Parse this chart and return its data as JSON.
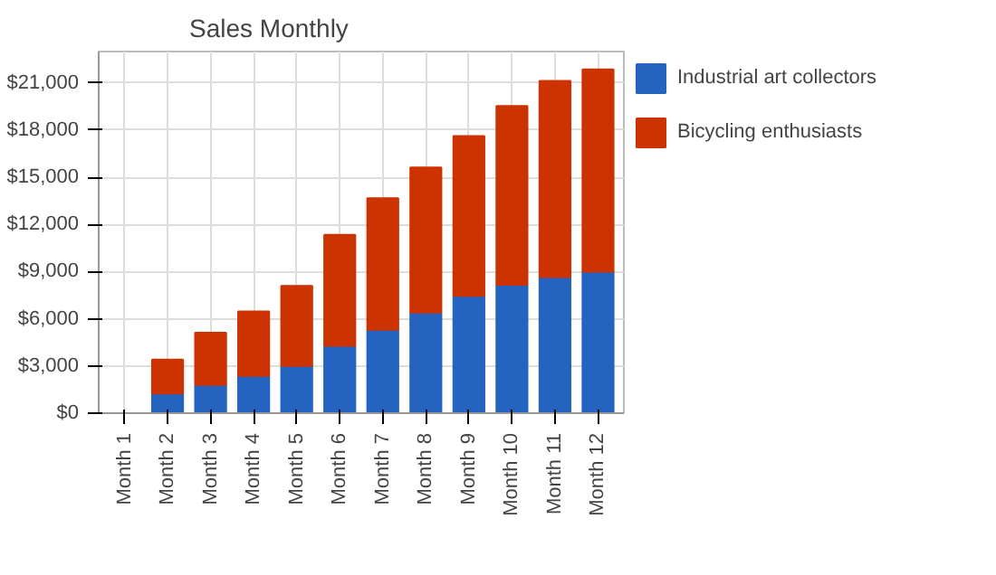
{
  "chart_data": {
    "type": "bar",
    "title": "Sales Monthly",
    "stacked": true,
    "categories": [
      "Month 1",
      "Month 2",
      "Month 3",
      "Month 4",
      "Month 5",
      "Month 6",
      "Month 7",
      "Month 8",
      "Month 9",
      "Month 10",
      "Month 11",
      "Month 12"
    ],
    "series": [
      {
        "name": "Industrial art collectors",
        "color": "#2563c0",
        "values": [
          0,
          1250,
          1800,
          2370,
          3000,
          4280,
          5300,
          6400,
          7460,
          8160,
          8660,
          9000
        ]
      },
      {
        "name": "Bicycling enthusiasts",
        "color": "#cc3300",
        "values": [
          0,
          2150,
          3320,
          4100,
          5090,
          7060,
          8370,
          9220,
          10170,
          11380,
          12470,
          12870
        ]
      }
    ],
    "ylim": [
      0,
      23000
    ],
    "yticks": [
      {
        "value": 0,
        "label": "$0"
      },
      {
        "value": 3000,
        "label": "$3,000"
      },
      {
        "value": 6000,
        "label": "$6,000"
      },
      {
        "value": 9000,
        "label": "$9,000"
      },
      {
        "value": 12000,
        "label": "$12,000"
      },
      {
        "value": 15000,
        "label": "$15,000"
      },
      {
        "value": 18000,
        "label": "$18,000"
      },
      {
        "value": 21000,
        "label": "$21,000"
      }
    ],
    "grid": true,
    "legend": "right"
  }
}
